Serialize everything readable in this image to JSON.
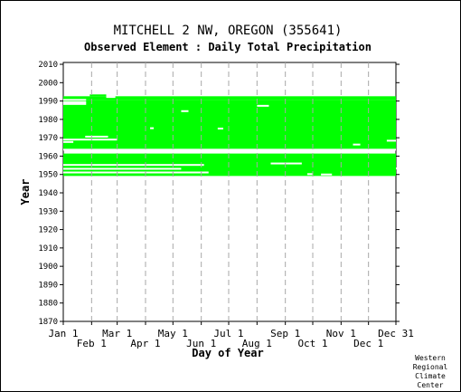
{
  "chart_data": {
    "type": "bar",
    "title": "MITCHELL 2 NW, OREGON   (355641)",
    "subtitle": "Observed Element : Daily Total Precipitation",
    "xlabel": "Day of Year",
    "ylabel": "Year",
    "xlim": [
      1,
      365
    ],
    "ylim": [
      1870,
      2011
    ],
    "y_ticks": [
      1870,
      1880,
      1890,
      1900,
      1910,
      1920,
      1930,
      1940,
      1950,
      1960,
      1970,
      1980,
      1990,
      2000,
      2010
    ],
    "x_ticks_top_row": [
      {
        "label": "Jan 1",
        "day": 1
      },
      {
        "label": "Mar 1",
        "day": 60
      },
      {
        "label": "May 1",
        "day": 121
      },
      {
        "label": "Jul 1",
        "day": 182
      },
      {
        "label": "Sep 1",
        "day": 244
      },
      {
        "label": "Nov 1",
        "day": 305
      },
      {
        "label": "Dec 31",
        "day": 365
      }
    ],
    "x_ticks_bottom_row": [
      {
        "label": "Feb 1",
        "day": 32
      },
      {
        "label": "Apr 1",
        "day": 91
      },
      {
        "label": "Jun 1",
        "day": 152
      },
      {
        "label": "Aug 1",
        "day": 213
      },
      {
        "label": "Oct 1",
        "day": 274
      },
      {
        "label": "Dec 1",
        "day": 335
      }
    ],
    "gridlines": "vertical-dashed-monthly",
    "series_color": "#00ff00",
    "data_ranges": [
      {
        "year_start": 1949.2,
        "year_end": 1961.4,
        "day_start": 1,
        "day_end": 365
      },
      {
        "year_start": 1963.6,
        "year_end": 1990.6,
        "day_start": 1,
        "day_end": 365
      },
      {
        "year_start": 1990.6,
        "year_end": 1992.6,
        "day_start": 1,
        "day_end": 365
      },
      {
        "year_start": 1992.6,
        "year_end": 1993.6,
        "day_start": 30,
        "day_end": 48
      }
    ],
    "gaps": [
      {
        "year": 1951.1,
        "day_start": 1,
        "day_end": 160
      },
      {
        "year": 1953.1,
        "day_start": 1,
        "day_end": 130
      },
      {
        "year": 1955.2,
        "day_start": 1,
        "day_end": 155
      },
      {
        "year": 1956.0,
        "day_start": 228,
        "day_end": 262
      },
      {
        "year": 1953.3,
        "day_start": 365,
        "day_end": 365
      },
      {
        "year": 1950.2,
        "day_start": 268,
        "day_end": 274
      },
      {
        "year": 1950.0,
        "day_start": 283,
        "day_end": 295
      },
      {
        "year": 1963.5,
        "day_start": 1,
        "day_end": 365
      },
      {
        "year": 1967.7,
        "day_start": 1,
        "day_end": 12
      },
      {
        "year": 1969.0,
        "day_start": 1,
        "day_end": 60
      },
      {
        "year": 1970.6,
        "day_start": 25,
        "day_end": 50
      },
      {
        "year": 1975.0,
        "day_start": 170,
        "day_end": 176
      },
      {
        "year": 1987.4,
        "day_start": 213,
        "day_end": 226
      },
      {
        "year": 1984.5,
        "day_start": 130,
        "day_end": 138
      },
      {
        "year": 1988.4,
        "day_start": 1,
        "day_end": 26
      },
      {
        "year": 1989.3,
        "day_start": 1,
        "day_end": 26
      },
      {
        "year": 1966.3,
        "day_start": 318,
        "day_end": 326
      },
      {
        "year": 1968.4,
        "day_start": 355,
        "day_end": 365
      },
      {
        "year": 1990.6,
        "day_start": 1,
        "day_end": 26
      },
      {
        "year": 1992.2,
        "day_start": 48,
        "day_end": 58
      },
      {
        "year": 1975.2,
        "day_start": 96,
        "day_end": 100
      }
    ]
  },
  "footer": {
    "credit_lines": [
      "Western",
      "Regional",
      "Climate",
      "Center"
    ]
  }
}
